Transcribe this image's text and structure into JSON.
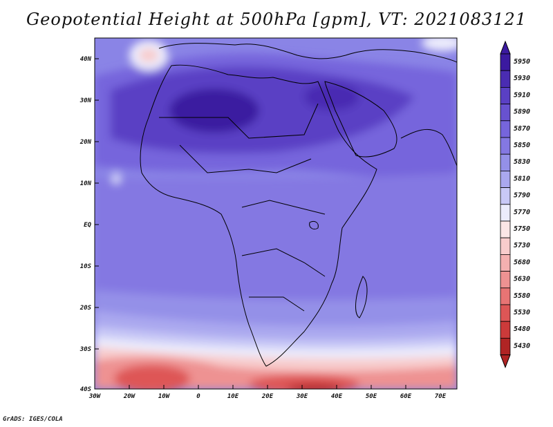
{
  "title": "Geopotential Height at 500hPa [gpm], VT: 2021083121",
  "credit": "GrADS: IGES/COLA",
  "axes": {
    "lat_labels": [
      "40N",
      "30N",
      "20N",
      "10N",
      "EQ",
      "10S",
      "20S",
      "30S",
      "40S"
    ],
    "lon_labels": [
      "30W",
      "20W",
      "10W",
      "0",
      "10E",
      "20E",
      "30E",
      "40E",
      "50E",
      "60E",
      "70E"
    ]
  },
  "colorbar": {
    "levels": [
      "5950",
      "5930",
      "5910",
      "5890",
      "5870",
      "5850",
      "5830",
      "5810",
      "5790",
      "5770",
      "5750",
      "5730",
      "5680",
      "5630",
      "5580",
      "5530",
      "5480",
      "5430"
    ],
    "colors": [
      "#3b1aa0",
      "#4a2cb2",
      "#5a40c4",
      "#6852d0",
      "#7665dc",
      "#8478e2",
      "#9490e8",
      "#aaa8ef",
      "#c8c8f6",
      "#ececfc",
      "#fbe6e6",
      "#f8cccc",
      "#f4b0b0",
      "#ee9292",
      "#e87474",
      "#de5656",
      "#cc3a3a",
      "#b02424"
    ]
  },
  "map_colors": {
    "ocean_base": "#8a84e6",
    "strong_high": "#4a2cb2",
    "very_strong_high": "#3b1aa0",
    "mid": "#7a70e0",
    "light": "#c8c8f6",
    "pale": "#ececfc",
    "warm1": "#f8cccc",
    "warm2": "#ee9292",
    "warm3": "#de5656",
    "warm4": "#b02424",
    "coast": "#000000"
  }
}
